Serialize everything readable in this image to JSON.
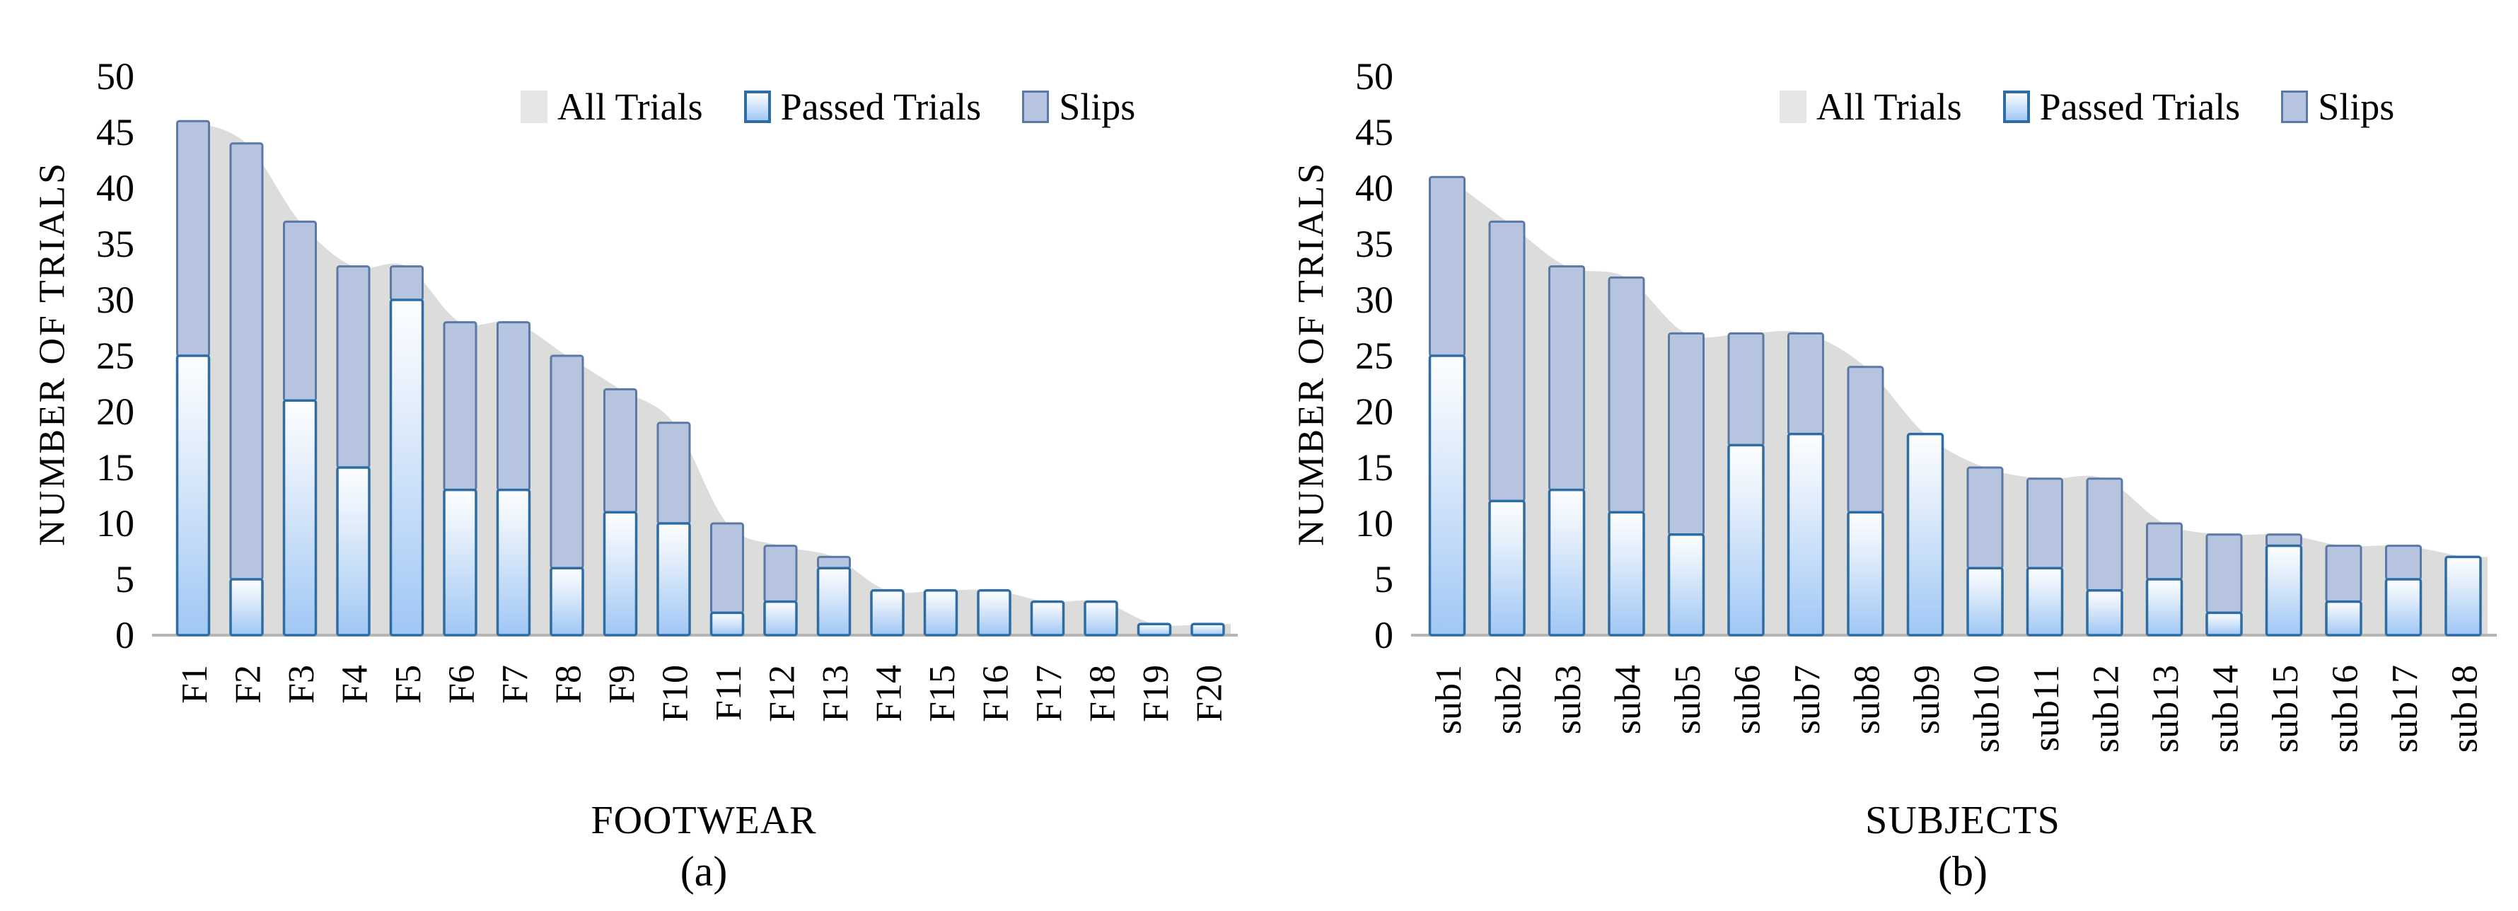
{
  "figure": {
    "legend": [
      {
        "label": "All Trials",
        "swatch": "all-trials"
      },
      {
        "label": "Passed Trials",
        "swatch": "passed"
      },
      {
        "label": "Slips",
        "swatch": "slips"
      }
    ],
    "colors": {
      "all_trials_fill": "#dcdcda",
      "legend_all_trials_swatch": "#e6e6e4",
      "passed_fill_top": "#fdfeff",
      "passed_fill_mid": "#e3eefb",
      "passed_fill_bottom": "#a0c7f5",
      "passed_border": "#2e6da4",
      "slips_fill": "#b6c4df",
      "slips_border": "#5b79a5",
      "baseline": "#b5b5b3",
      "text": "#000000"
    }
  },
  "chart_data": [
    {
      "type": "bar",
      "panel_label": "(a)",
      "xlabel": "FOOTWEAR",
      "ylabel": "NUMBER OF TRIALS",
      "ylim": [
        0,
        50
      ],
      "y_ticks": [
        0,
        5,
        10,
        15,
        20,
        25,
        30,
        35,
        40,
        45,
        50
      ],
      "grid": false,
      "legend_position": "top",
      "categories": [
        "F1",
        "F2",
        "F3",
        "F4",
        "F5",
        "F6",
        "F7",
        "F8",
        "F9",
        "F10",
        "F11",
        "F12",
        "F13",
        "F14",
        "F15",
        "F16",
        "F17",
        "F18",
        "F19",
        "F20"
      ],
      "series": [
        {
          "name": "All Trials",
          "style": "area",
          "values": [
            46,
            44,
            37,
            33,
            33,
            28,
            28,
            25,
            22,
            19,
            10,
            8,
            7,
            4,
            4,
            4,
            3,
            3,
            1,
            1
          ]
        },
        {
          "name": "Passed Trials",
          "style": "bar",
          "values": [
            25,
            5,
            21,
            15,
            30,
            13,
            13,
            6,
            11,
            10,
            2,
            3,
            6,
            4,
            4,
            4,
            3,
            3,
            1,
            1
          ]
        },
        {
          "name": "Slips",
          "style": "bar-stacked",
          "values": [
            21,
            39,
            16,
            18,
            3,
            15,
            15,
            19,
            11,
            9,
            8,
            5,
            1,
            0,
            0,
            0,
            0,
            0,
            0,
            0
          ]
        }
      ]
    },
    {
      "type": "bar",
      "panel_label": "(b)",
      "xlabel": "SUBJECTS",
      "ylabel": "NUMBER OF TRIALS",
      "ylim": [
        0,
        50
      ],
      "y_ticks": [
        0,
        5,
        10,
        15,
        20,
        25,
        30,
        35,
        40,
        45,
        50
      ],
      "grid": false,
      "legend_position": "top",
      "categories": [
        "sub1",
        "sub2",
        "sub3",
        "sub4",
        "sub5",
        "sub6",
        "sub7",
        "sub8",
        "sub9",
        "sub10",
        "sub11",
        "sub12",
        "sub13",
        "sub14",
        "sub15",
        "sub16",
        "sub17",
        "sub18"
      ],
      "series": [
        {
          "name": "All Trials",
          "style": "area",
          "values": [
            41,
            37,
            33,
            32,
            27,
            27,
            27,
            24,
            18,
            15,
            14,
            14,
            10,
            9,
            9,
            8,
            8,
            7
          ]
        },
        {
          "name": "Passed Trials",
          "style": "bar",
          "values": [
            25,
            12,
            13,
            11,
            9,
            17,
            18,
            11,
            18,
            6,
            6,
            4,
            5,
            2,
            8,
            3,
            5,
            7
          ]
        },
        {
          "name": "Slips",
          "style": "bar-stacked",
          "values": [
            16,
            25,
            20,
            21,
            18,
            10,
            9,
            13,
            0,
            9,
            8,
            10,
            5,
            7,
            1,
            5,
            3,
            0
          ]
        }
      ]
    }
  ]
}
